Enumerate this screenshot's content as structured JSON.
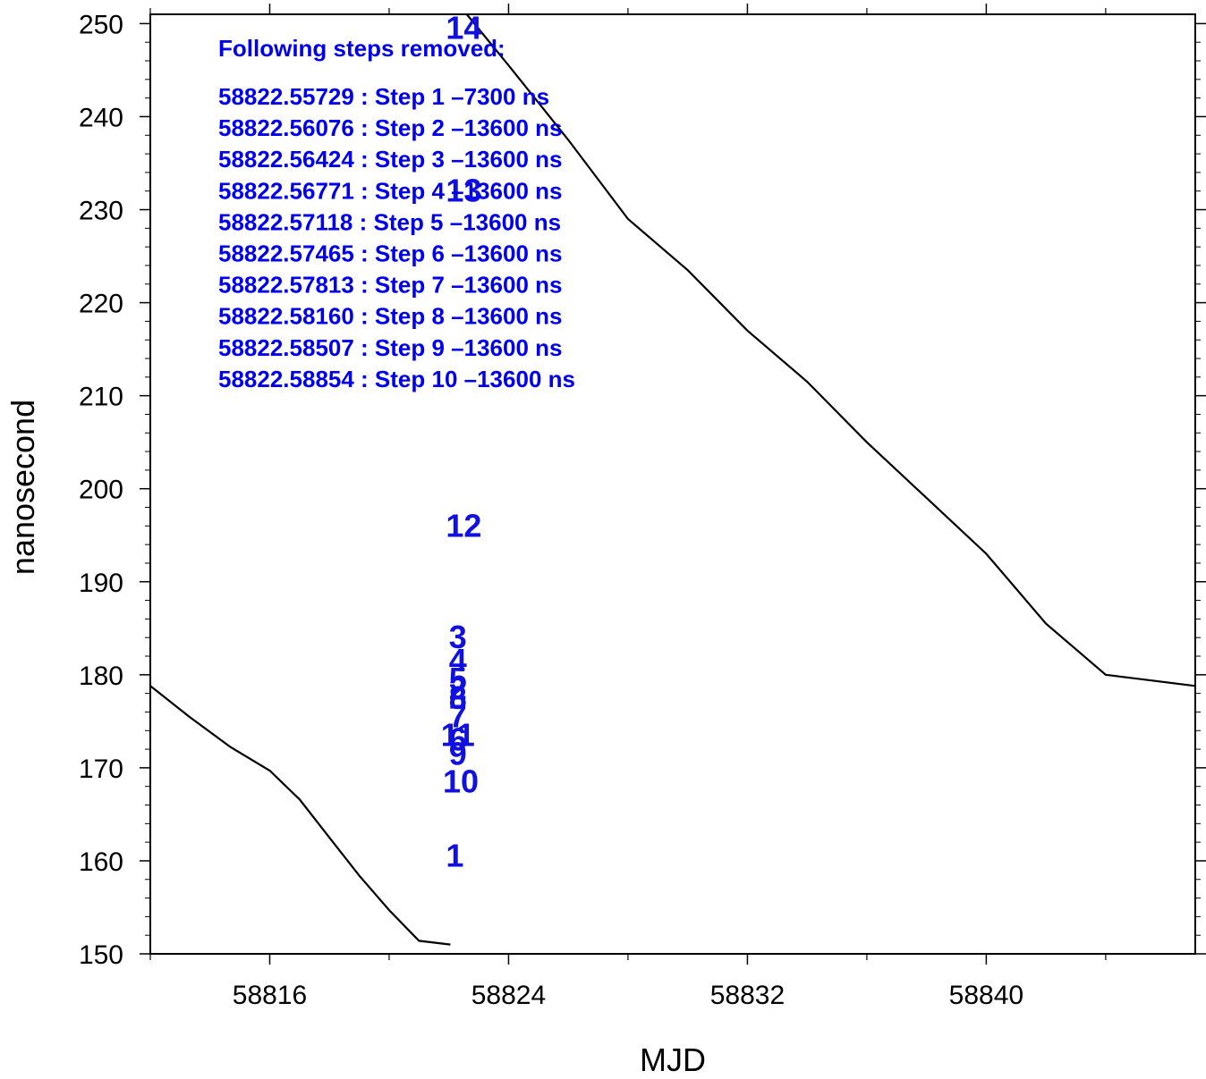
{
  "chart_data": {
    "type": "line",
    "xlabel": "MJD",
    "ylabel": "nanosecond",
    "xlim": [
      58812,
      58847
    ],
    "ylim": [
      150,
      251
    ],
    "x_ticks": [
      58816,
      58824,
      58832,
      58840
    ],
    "y_ticks": [
      150,
      160,
      170,
      180,
      190,
      200,
      210,
      220,
      230,
      240,
      250
    ],
    "series": [
      {
        "x": [
          58812.0,
          58813.3,
          58814.7,
          58816.0,
          58817.0,
          58818.0,
          58819.0,
          58820.0,
          58821.0,
          58822.05
        ],
        "y": [
          178.8,
          175.5,
          172.2,
          169.7,
          166.6,
          162.5,
          158.4,
          154.7,
          151.4,
          151.0
        ]
      },
      {
        "x": [
          58822.6,
          58824.0,
          58826.0,
          58828.0,
          58830.0,
          58832.0,
          58834.0,
          58836.0,
          58838.0,
          58840.0,
          58842.0,
          58844.0,
          58847.0
        ],
        "y": [
          251.0,
          245.5,
          237.5,
          229.0,
          223.5,
          217.0,
          211.5,
          205.0,
          199.0,
          193.0,
          185.5,
          180.0,
          178.8
        ]
      }
    ],
    "annotation": {
      "title": "Following steps removed:",
      "lines": [
        "58822.55729 : Step 1 –7300 ns",
        "58822.56076 : Step 2 –13600 ns",
        "58822.56424 : Step 3 –13600 ns",
        "58822.56771 : Step 4 –13600 ns",
        "58822.57118 : Step 5 –13600 ns",
        "58822.57465 : Step 6 –13600 ns",
        "58822.57813 : Step 7 –13600 ns",
        "58822.58160 : Step 8 –13600 ns",
        "58822.58507 : Step 9 –13600 ns",
        "58822.58854 : Step 10 –13600 ns"
      ]
    },
    "step_labels": [
      {
        "text": "14",
        "x": 58822.5,
        "y": 249.5
      },
      {
        "text": "13",
        "x": 58822.5,
        "y": 232.0
      },
      {
        "text": "12",
        "x": 58822.5,
        "y": 196.0
      },
      {
        "text": "3",
        "x": 58822.3,
        "y": 184.0
      },
      {
        "text": "4",
        "x": 58822.3,
        "y": 181.5
      },
      {
        "text": "5",
        "x": 58822.3,
        "y": 179.5
      },
      {
        "text": "2",
        "x": 58822.3,
        "y": 178.5
      },
      {
        "text": "8",
        "x": 58822.3,
        "y": 177.5
      },
      {
        "text": "7",
        "x": 58822.3,
        "y": 175.5
      },
      {
        "text": "11",
        "x": 58822.3,
        "y": 173.5
      },
      {
        "text": "6",
        "x": 58822.3,
        "y": 173.0
      },
      {
        "text": "9",
        "x": 58822.3,
        "y": 171.5
      },
      {
        "text": "10",
        "x": 58822.4,
        "y": 168.5
      },
      {
        "text": "1",
        "x": 58822.2,
        "y": 160.5
      }
    ]
  }
}
